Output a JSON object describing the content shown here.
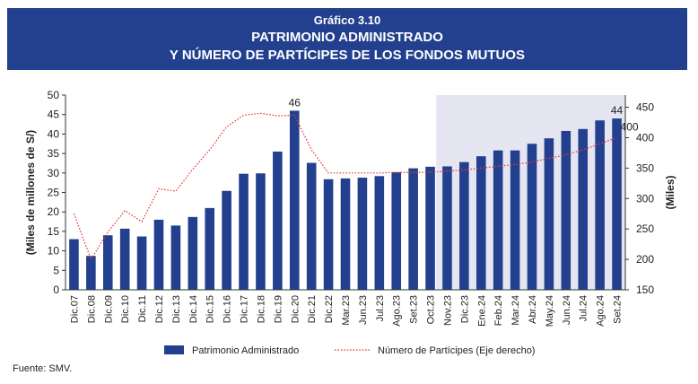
{
  "header": {
    "label": "Gráfico 3.10",
    "title_line1": "PATRIMONIO ADMINISTRADO",
    "title_line2": "Y NÚMERO DE PARTÍCIPES DE LOS FONDOS MUTUOS"
  },
  "source": "Fuente: SMV.",
  "chart_data": {
    "type": "bar",
    "categories": [
      "Dic.07",
      "Dic.08",
      "Dic.09",
      "Dic.10",
      "Dic.11",
      "Dic.12",
      "Dic.13",
      "Dic.14",
      "Dic.15",
      "Dic.16",
      "Dic.17",
      "Dic.18",
      "Dic.19",
      "Dic.20",
      "Dic.21",
      "Dic.22",
      "Mar.23",
      "Jun.23",
      "Jul.23",
      "Ago.23",
      "Set.23",
      "Oct.23",
      "Nov.23",
      "Dic.23",
      "Ene.24",
      "Feb.24",
      "Mar.24",
      "Abr.24",
      "May.24",
      "Jun.24",
      "Jul.24",
      "Ago.24",
      "Set.24"
    ],
    "series": [
      {
        "name": "Patrimonio Administrado",
        "type": "bar",
        "axis": "left",
        "color": "#23408e",
        "values": [
          13,
          8.7,
          14,
          15.7,
          13.7,
          18,
          16.5,
          18.7,
          21,
          25.4,
          29.8,
          29.9,
          35.5,
          46,
          32.6,
          28.4,
          28.6,
          28.8,
          29.2,
          30.2,
          31.2,
          31.6,
          31.7,
          32.8,
          34.3,
          35.8,
          35.8,
          37.5,
          38.9,
          40.8,
          41.3,
          43.5,
          44
        ]
      },
      {
        "name": "Número de Partícipes (Eje derecho)",
        "type": "line",
        "axis": "right",
        "color": "#e53935",
        "values": [
          275,
          200,
          245,
          280,
          262,
          316,
          312,
          348,
          380,
          418,
          437,
          440,
          436,
          437,
          380,
          342,
          342,
          342,
          342,
          343,
          343,
          343,
          345,
          347,
          350,
          353,
          356,
          360,
          366,
          372,
          380,
          390,
          400
        ]
      }
    ],
    "data_labels": [
      {
        "series": 0,
        "index": 13,
        "text": "46"
      },
      {
        "series": 0,
        "index": 32,
        "text": "44"
      },
      {
        "series": 1,
        "index": 32,
        "text": "400"
      }
    ],
    "ylabel": "(Miles de millones de S/)",
    "ylim": [
      0,
      50
    ],
    "yticks": [
      0,
      5,
      10,
      15,
      20,
      25,
      30,
      35,
      40,
      45,
      50
    ],
    "y2label": "(Miles)",
    "y2lim": [
      150,
      470
    ],
    "y2ticks": [
      150,
      200,
      250,
      300,
      350,
      400,
      450
    ],
    "shaded_region": {
      "from": "Nov.23",
      "to": "Set.24",
      "color": "#e6e6f3"
    },
    "grid": false,
    "legend_position": "bottom"
  }
}
